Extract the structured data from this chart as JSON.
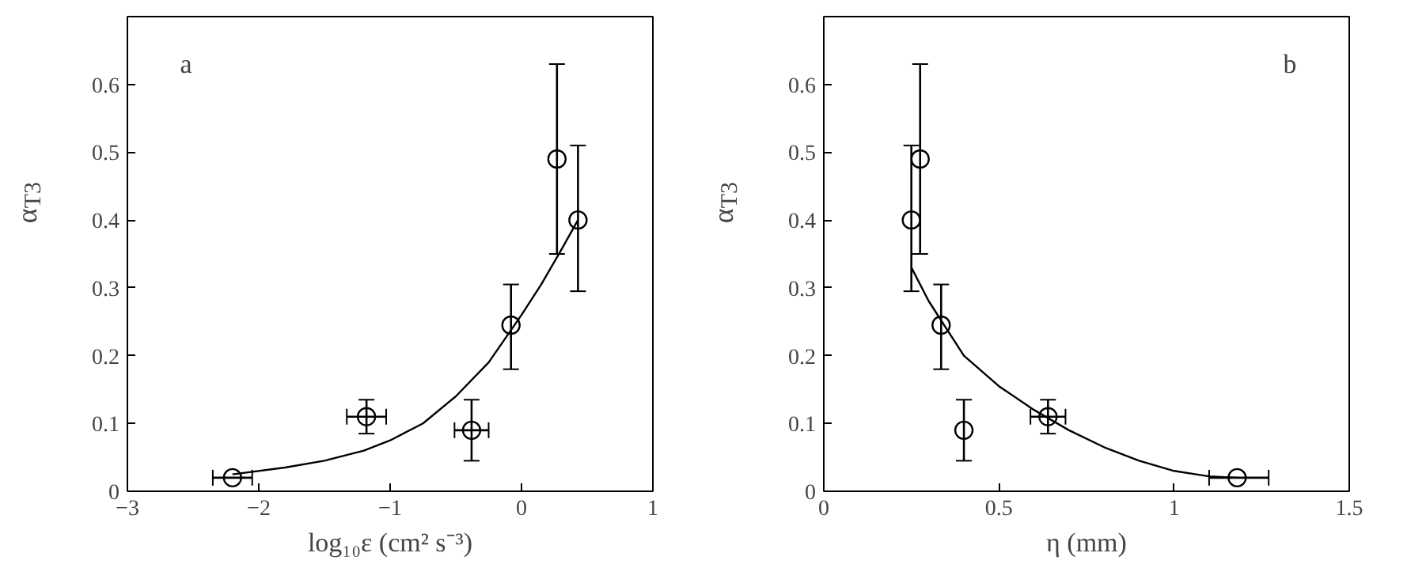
{
  "chart_data": [
    {
      "type": "scatter",
      "xlabel": "log₁₀ε (cm² s⁻³)",
      "ylabel": "α$_{T3}$",
      "annotations": [
        "a"
      ],
      "xlim": [
        -3,
        1
      ],
      "ylim": [
        0,
        0.7
      ],
      "xticks": [
        -3,
        -2,
        -1,
        0,
        1
      ],
      "yticks": [
        0,
        0.1,
        0.2,
        0.3,
        0.4,
        0.5,
        0.6
      ],
      "grid": false,
      "marker": "circle",
      "series": [
        {
          "color": "#000000",
          "x": [
            -2.2,
            -1.18,
            -0.38,
            -0.08,
            0.27,
            0.43
          ],
          "values": [
            0.02,
            0.11,
            0.09,
            0.245,
            0.49,
            0.4
          ],
          "errors": [
            null,
            [
              0.085,
              0.135
            ],
            [
              0.045,
              0.135
            ],
            [
              0.18,
              0.305
            ],
            [
              0.35,
              0.63
            ],
            [
              0.295,
              0.51
            ]
          ],
          "xerrors": [
            [
              -2.35,
              -2.05
            ],
            [
              -1.33,
              -1.03
            ],
            [
              -0.51,
              -0.25
            ],
            null,
            null,
            null
          ]
        },
        {
          "type": "line",
          "color": "#000000",
          "marker": "none",
          "line_style": "solid",
          "x": [
            -2.2,
            -1.8,
            -1.5,
            -1.2,
            -1.0,
            -0.75,
            -0.5,
            -0.25,
            0.0,
            0.15,
            0.3,
            0.43
          ],
          "values": [
            0.025,
            0.035,
            0.045,
            0.06,
            0.075,
            0.1,
            0.14,
            0.19,
            0.26,
            0.305,
            0.355,
            0.4
          ]
        }
      ]
    },
    {
      "type": "scatter",
      "xlabel": "η (mm)",
      "ylabel": "α$_{T3}$",
      "annotations": [
        "b"
      ],
      "xlim": [
        0,
        1.5
      ],
      "ylim": [
        0,
        0.7
      ],
      "xticks": [
        0,
        0.5,
        1,
        1.5
      ],
      "yticks": [
        0,
        0.1,
        0.2,
        0.3,
        0.4,
        0.5,
        0.6
      ],
      "grid": false,
      "marker": "circle",
      "series": [
        {
          "color": "#000000",
          "x": [
            0.25,
            0.275,
            0.335,
            0.4,
            0.64,
            1.18
          ],
          "values": [
            0.4,
            0.49,
            0.245,
            0.09,
            0.11,
            0.02
          ],
          "errors": [
            [
              0.295,
              0.51
            ],
            [
              0.35,
              0.63
            ],
            [
              0.18,
              0.305
            ],
            [
              0.045,
              0.135
            ],
            [
              0.085,
              0.135
            ],
            null
          ],
          "xerrors": [
            null,
            null,
            null,
            null,
            [
              0.59,
              0.69
            ],
            [
              1.1,
              1.27
            ]
          ]
        },
        {
          "type": "line",
          "color": "#000000",
          "marker": "none",
          "line_style": "solid",
          "x": [
            0.25,
            0.3,
            0.4,
            0.5,
            0.6,
            0.7,
            0.8,
            0.9,
            1.0,
            1.1,
            1.18
          ],
          "values": [
            0.33,
            0.28,
            0.2,
            0.155,
            0.12,
            0.09,
            0.065,
            0.045,
            0.03,
            0.022,
            0.02
          ]
        }
      ]
    }
  ]
}
